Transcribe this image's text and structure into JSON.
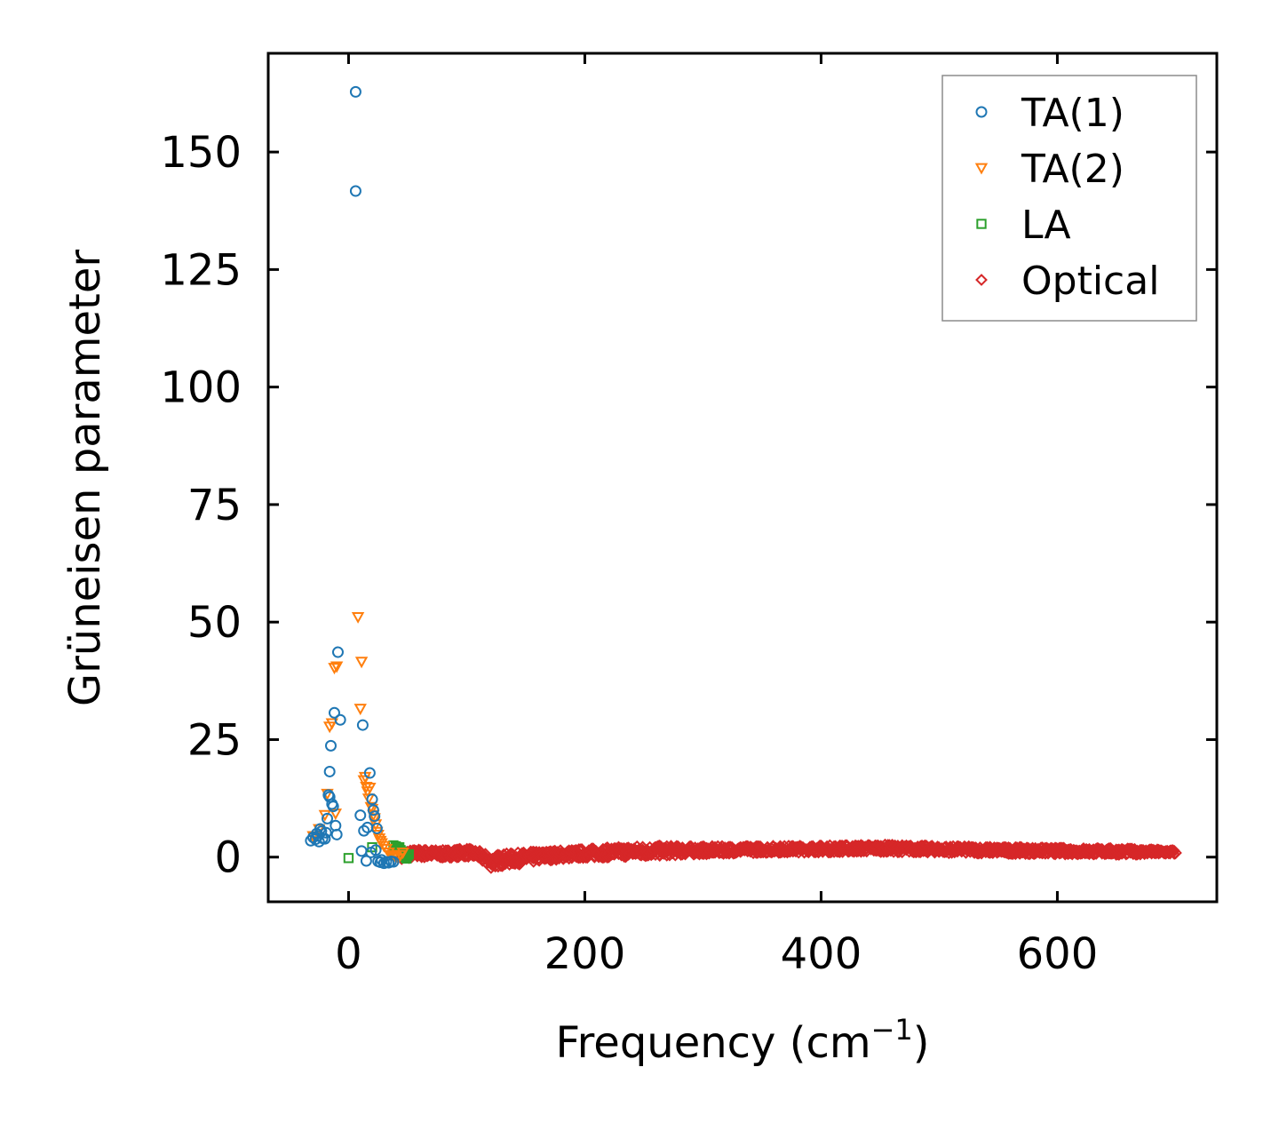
{
  "chart_data": {
    "type": "scatter",
    "title": "",
    "xlabel": "Frequency (cm",
    "xlabel_sup": "−1",
    "xlabel_end": ")",
    "ylabel": "Grüneisen parameter",
    "xlim": [
      -68,
      735
    ],
    "ylim": [
      -9.5,
      171
    ],
    "xticks": [
      0,
      200,
      400,
      600
    ],
    "yticks": [
      0,
      25,
      50,
      75,
      100,
      125,
      150
    ],
    "grid": false,
    "legend_position": "top-right",
    "series": [
      {
        "name": "TA(1)",
        "marker": "circle",
        "color": "#1f77b4",
        "points": [
          [
            -32,
            3.5
          ],
          [
            -30,
            4.2
          ],
          [
            -28,
            3.8
          ],
          [
            -27,
            5.0
          ],
          [
            -26,
            4.5
          ],
          [
            -25,
            3.3
          ],
          [
            -24,
            6.0
          ],
          [
            -23,
            5.5
          ],
          [
            -22,
            4.0
          ],
          [
            -20,
            3.9
          ],
          [
            -19,
            5.2
          ],
          [
            -18,
            8.2
          ],
          [
            -17,
            13.2
          ],
          [
            -16,
            12.8
          ],
          [
            -16,
            18.2
          ],
          [
            -15,
            23.7
          ],
          [
            -14,
            11.3
          ],
          [
            -13,
            10.8
          ],
          [
            -12,
            30.7
          ],
          [
            -11,
            6.7
          ],
          [
            -10,
            4.8
          ],
          [
            -9,
            43.6
          ],
          [
            -7,
            29.2
          ],
          [
            6,
            162.8
          ],
          [
            6,
            141.7
          ],
          [
            10,
            8.9
          ],
          [
            11,
            1.3
          ],
          [
            12,
            28.1
          ],
          [
            13,
            5.6
          ],
          [
            15,
            -0.8
          ],
          [
            16,
            6.3
          ],
          [
            18,
            17.9
          ],
          [
            19,
            1.0
          ],
          [
            20,
            12.3
          ],
          [
            21,
            10.0
          ],
          [
            22,
            8.7
          ],
          [
            23,
            1.5
          ],
          [
            24,
            6.1
          ],
          [
            25,
            -0.9
          ],
          [
            27,
            -1.1
          ],
          [
            28,
            -0.6
          ],
          [
            30,
            -1.3
          ],
          [
            32,
            -1.0
          ],
          [
            34,
            -1.2
          ],
          [
            36,
            -0.9
          ],
          [
            38,
            -1.0
          ]
        ]
      },
      {
        "name": "TA(2)",
        "marker": "triangle-down",
        "color": "#ff7f0e",
        "points": [
          [
            -30,
            4.5
          ],
          [
            -25,
            6.0
          ],
          [
            -20,
            9.0
          ],
          [
            -18,
            13.5
          ],
          [
            -16,
            27.8
          ],
          [
            -14,
            28.5
          ],
          [
            -12,
            40.3
          ],
          [
            -11,
            9.3
          ],
          [
            -10,
            40.6
          ],
          [
            8,
            51.1
          ],
          [
            10,
            31.6
          ],
          [
            11,
            41.6
          ],
          [
            13,
            16.4
          ],
          [
            14,
            17.1
          ],
          [
            15,
            15.0
          ],
          [
            16,
            14.0
          ],
          [
            17,
            12.5
          ],
          [
            18,
            14.8
          ],
          [
            19,
            10.7
          ],
          [
            20,
            10.3
          ],
          [
            21,
            9.0
          ],
          [
            22,
            8.3
          ],
          [
            23,
            7.0
          ],
          [
            24,
            5.4
          ],
          [
            25,
            4.8
          ],
          [
            26,
            4.0
          ],
          [
            27,
            3.5
          ],
          [
            28,
            3.0
          ],
          [
            30,
            2.4
          ],
          [
            32,
            1.8
          ],
          [
            34,
            1.0
          ],
          [
            36,
            0.5
          ],
          [
            38,
            0.2
          ],
          [
            40,
            0.0
          ],
          [
            42,
            -0.2
          ],
          [
            44,
            0.5
          ],
          [
            46,
            1.0
          ]
        ]
      },
      {
        "name": "LA",
        "marker": "square",
        "color": "#2ca02c",
        "points": [
          [
            0,
            -0.2
          ],
          [
            20,
            2.1
          ],
          [
            38,
            2.5
          ],
          [
            40,
            2.3
          ],
          [
            41,
            2.0
          ],
          [
            42,
            1.8
          ],
          [
            43,
            2.1
          ],
          [
            44,
            1.5
          ],
          [
            45,
            1.2
          ],
          [
            46,
            0.8
          ],
          [
            47,
            0.4
          ],
          [
            48,
            0.0
          ],
          [
            49,
            -0.3
          ],
          [
            50,
            0.2
          ],
          [
            51,
            0.6
          ]
        ]
      },
      {
        "name": "Optical",
        "marker": "diamond",
        "color": "#d62728",
        "band": [
          [
            45,
            -0.5,
            1.5
          ],
          [
            60,
            -0.2,
            1.8
          ],
          [
            80,
            -0.3,
            1.6
          ],
          [
            100,
            0.0,
            2.0
          ],
          [
            110,
            -0.5,
            1.5
          ],
          [
            120,
            -2.5,
            0.5
          ],
          [
            130,
            -2.0,
            0.8
          ],
          [
            150,
            -1.5,
            1.2
          ],
          [
            170,
            -0.8,
            1.5
          ],
          [
            200,
            -0.3,
            1.9
          ],
          [
            250,
            0.0,
            2.6
          ],
          [
            300,
            0.5,
            2.4
          ],
          [
            350,
            0.8,
            2.5
          ],
          [
            400,
            0.9,
            2.6
          ],
          [
            450,
            1.0,
            2.8
          ],
          [
            500,
            0.8,
            2.5
          ],
          [
            550,
            0.6,
            2.3
          ],
          [
            600,
            0.5,
            2.1
          ],
          [
            650,
            0.4,
            2.0
          ],
          [
            700,
            0.5,
            1.6
          ]
        ]
      }
    ]
  }
}
